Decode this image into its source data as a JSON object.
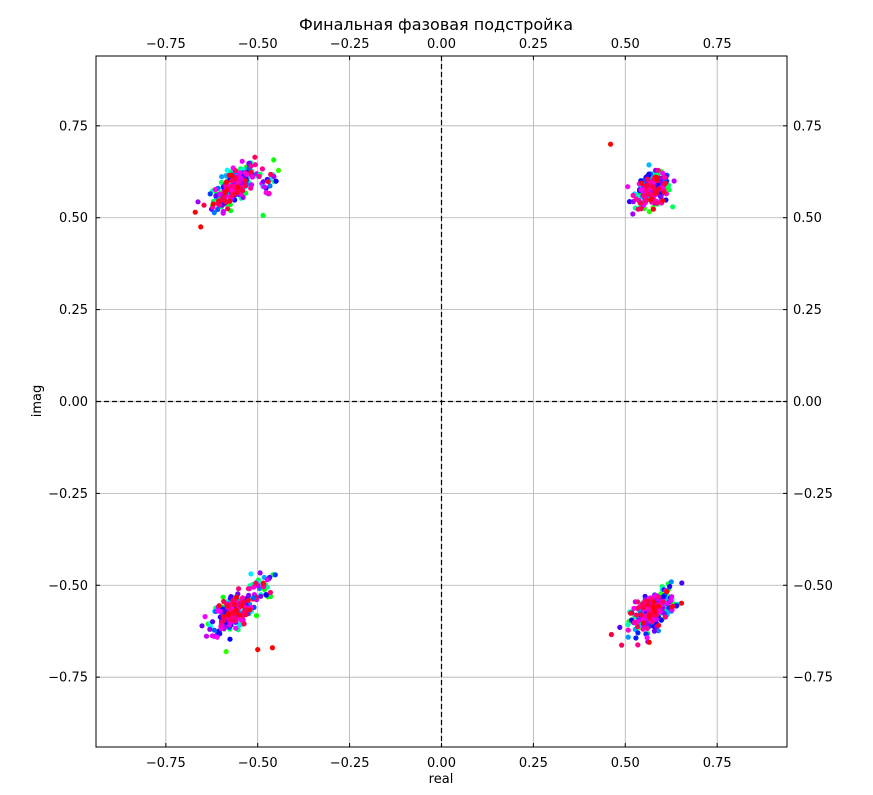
{
  "chart_data": {
    "type": "scatter",
    "title": "Финальная фазовая подстройка",
    "xlabel": "real",
    "ylabel": "imag",
    "xlim": [
      -0.94,
      0.94
    ],
    "ylim": [
      -0.94,
      0.94
    ],
    "xticks": [
      -0.75,
      -0.5,
      -0.25,
      0.0,
      0.25,
      0.5,
      0.75
    ],
    "yticks": [
      -0.75,
      -0.5,
      -0.25,
      0.0,
      0.25,
      0.5,
      0.75
    ],
    "xtick_labels": [
      "−0.75",
      "−0.50",
      "−0.25",
      "0.00",
      "0.25",
      "0.50",
      "0.75"
    ],
    "ytick_labels": [
      "−0.75",
      "−0.50",
      "−0.25",
      "0.00",
      "0.25",
      "0.50",
      "0.75"
    ],
    "ticks_on": [
      "bottom",
      "top",
      "left",
      "right"
    ],
    "grid": true,
    "reference_lines": [
      {
        "axis": "x",
        "value": 0,
        "style": "dashed"
      },
      {
        "axis": "y",
        "value": 0,
        "style": "dashed"
      }
    ],
    "colormap": "hsv",
    "clusters": [
      {
        "center": [
          -0.565,
          0.585
        ],
        "spread": [
          0.028,
          0.03
        ],
        "corr": 0.65,
        "count": 260
      },
      {
        "center": [
          -0.47,
          0.595
        ],
        "spread": [
          0.015,
          0.025
        ],
        "corr": 0.3,
        "count": 22
      },
      {
        "center": [
          0.575,
          0.575
        ],
        "spread": [
          0.024,
          0.022
        ],
        "corr": 0.2,
        "count": 240
      },
      {
        "center": [
          -0.57,
          -0.575
        ],
        "spread": [
          0.028,
          0.028
        ],
        "corr": 0.5,
        "count": 260
      },
      {
        "center": [
          -0.49,
          -0.5
        ],
        "spread": [
          0.017,
          0.02
        ],
        "corr": 0.2,
        "count": 30
      },
      {
        "center": [
          0.575,
          -0.57
        ],
        "spread": [
          0.03,
          0.03
        ],
        "corr": 0.6,
        "count": 280
      }
    ],
    "outliers": [
      {
        "x": 0.46,
        "y": 0.7
      },
      {
        "x": -0.67,
        "y": 0.515
      },
      {
        "x": -0.655,
        "y": 0.475
      },
      {
        "x": -0.46,
        "y": -0.67
      },
      {
        "x": -0.5,
        "y": -0.675
      },
      {
        "x": 0.565,
        "y": -0.655
      }
    ]
  }
}
